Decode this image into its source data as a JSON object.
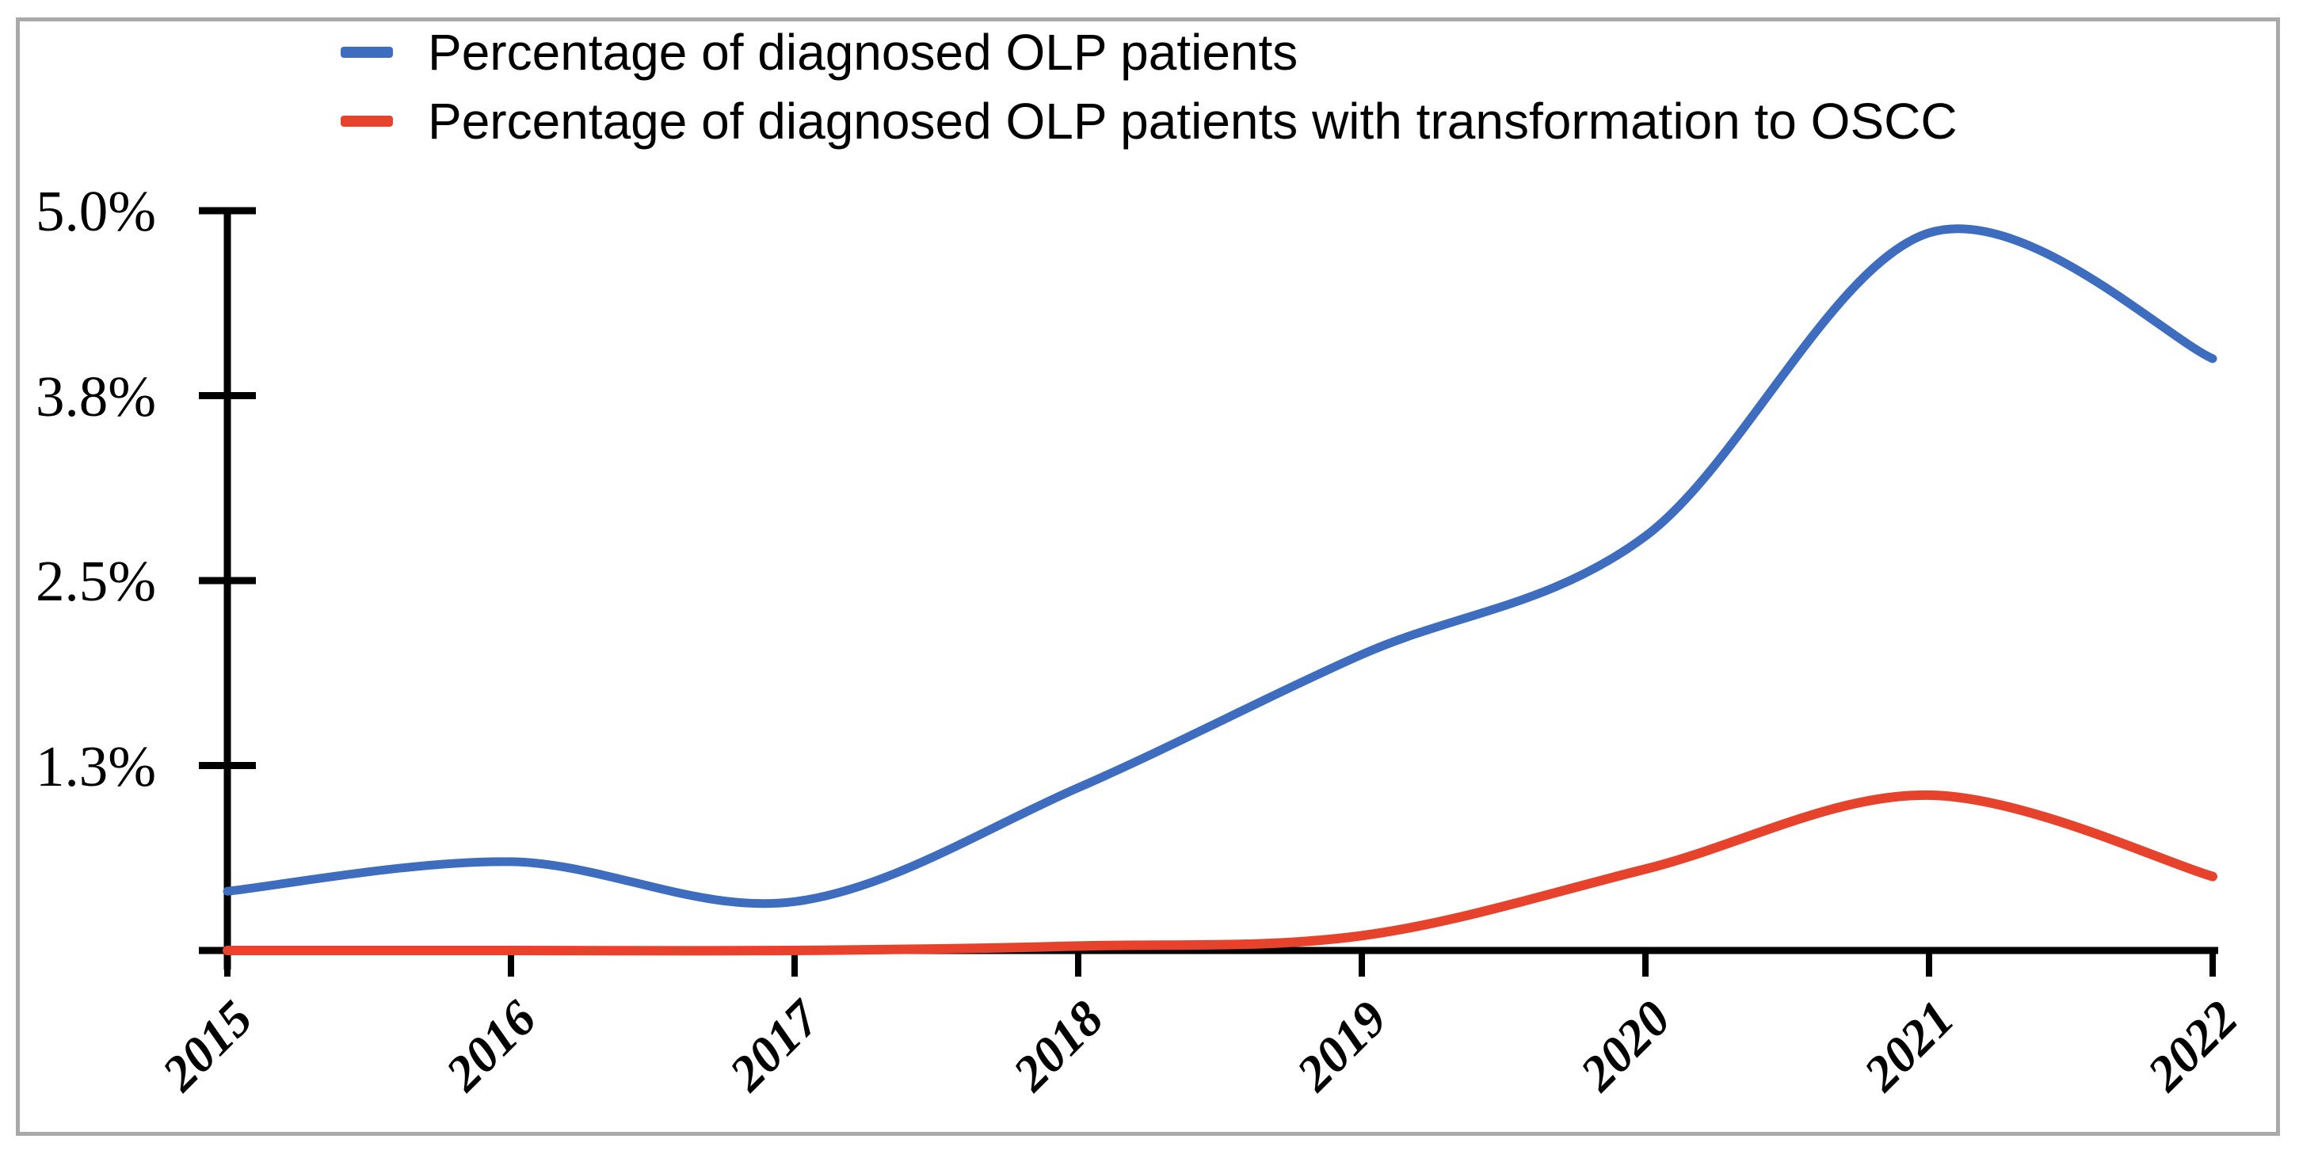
{
  "frame": {
    "border_color": "#a9a9a9"
  },
  "legend": {
    "items": [
      {
        "label": "Percentage of diagnosed OLP patients",
        "color": "#3e6dbf"
      },
      {
        "label": "Percentage of diagnosed OLP patients with transformation to OSCC",
        "color": "#e7422c"
      }
    ]
  },
  "chart_data": {
    "type": "line",
    "x": [
      2015,
      2016,
      2017,
      2018,
      2019,
      2020,
      2021,
      2022
    ],
    "x_labels": [
      "2015",
      "2016",
      "2017",
      "2018",
      "2019",
      "2020",
      "2021",
      "2022"
    ],
    "y_ticks": [
      {
        "label": "5.0%",
        "value": 5.0
      },
      {
        "label": "3.8%",
        "value": 3.75
      },
      {
        "label": "2.5%",
        "value": 2.5
      },
      {
        "label": "1.3%",
        "value": 1.25
      }
    ],
    "ylim": [
      0,
      5
    ],
    "ylabel": "",
    "xlabel": "",
    "grid": false,
    "smooth": true,
    "legend_position": "top-left",
    "axis_color": "#000000",
    "series": [
      {
        "name": "Percentage of diagnosed OLP patients",
        "color": "#3e6dbf",
        "values": [
          0.4,
          0.6,
          0.33,
          1.1,
          2.0,
          2.8,
          4.85,
          4.0
        ]
      },
      {
        "name": "Percentage of diagnosed OLP patients with transformation to OSCC",
        "color": "#e7422c",
        "values": [
          0.0,
          0.0,
          0.0,
          0.03,
          0.1,
          0.55,
          1.05,
          0.5
        ]
      }
    ]
  }
}
